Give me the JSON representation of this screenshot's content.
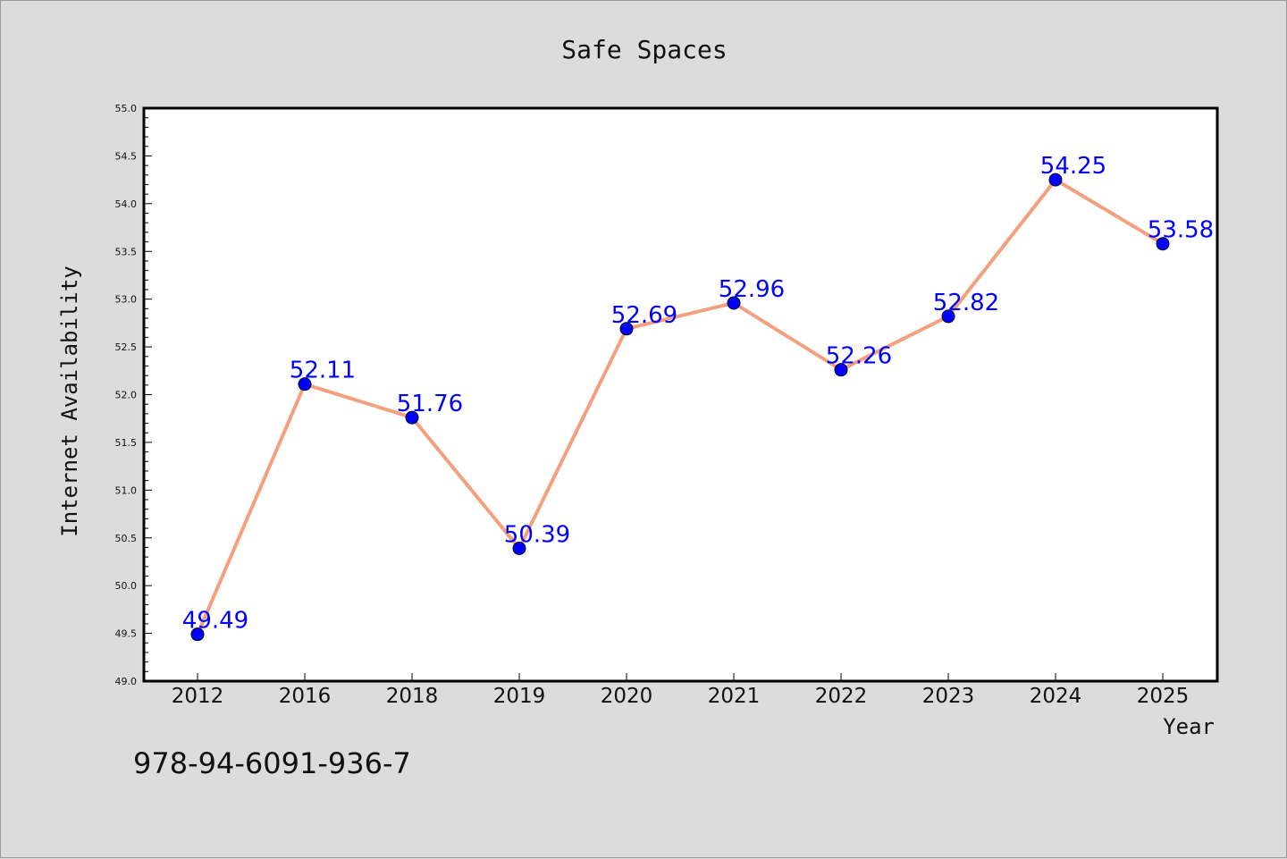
{
  "chart_data": {
    "type": "line",
    "title": "Safe Spaces",
    "xlabel": "Year",
    "ylabel": "Internet Availability",
    "categories": [
      "2012",
      "2016",
      "2018",
      "2019",
      "2020",
      "2021",
      "2022",
      "2023",
      "2024",
      "2025"
    ],
    "series": [
      {
        "values": [
          49.49,
          52.11,
          51.76,
          50.39,
          52.69,
          52.96,
          52.26,
          52.82,
          54.25,
          53.58
        ],
        "data_labels": [
          "49.49",
          "52.11",
          "51.76",
          "50.39",
          "52.69",
          "52.96",
          "52.26",
          "52.82",
          "54.25",
          "53.58"
        ],
        "line_color": "#f4a07e",
        "marker_color": "#0000ff",
        "label_color": "#0000ff"
      }
    ],
    "ylim": [
      49.0,
      55.0
    ],
    "yticks": [
      "49.0",
      "49.5",
      "50.0",
      "50.5",
      "51.0",
      "51.5",
      "52.0",
      "52.5",
      "53.0",
      "53.5",
      "54.0",
      "54.5",
      "55.0"
    ],
    "grid": false,
    "background": "#dcdcdc",
    "plot_background": "#ffffff"
  },
  "annotation": {
    "text": "978-94-6091-936-7"
  }
}
